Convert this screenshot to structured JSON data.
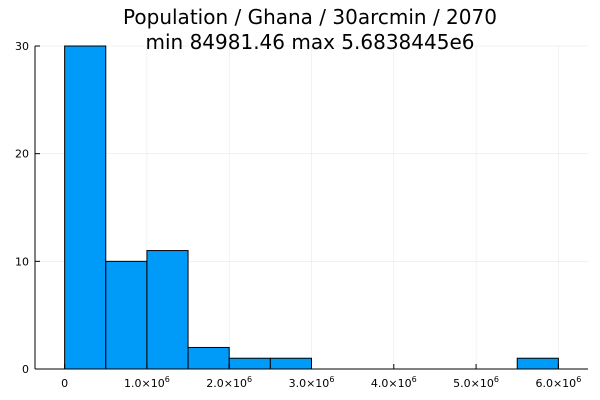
{
  "chart_data": {
    "type": "bar",
    "title": "Population / Ghana / 30arcmin / 2070",
    "subtitle": "min 84981.46  max 5.6838445e6",
    "xlabel": "",
    "ylabel": "",
    "bin_width": 500000,
    "bins": [
      {
        "x0": 0,
        "x1": 500000,
        "count": 30
      },
      {
        "x0": 500000,
        "x1": 1000000,
        "count": 10
      },
      {
        "x0": 1000000,
        "x1": 1500000,
        "count": 11
      },
      {
        "x0": 1500000,
        "x1": 2000000,
        "count": 2
      },
      {
        "x0": 2000000,
        "x1": 2500000,
        "count": 1
      },
      {
        "x0": 2500000,
        "x1": 3000000,
        "count": 1
      },
      {
        "x0": 3000000,
        "x1": 3500000,
        "count": 0
      },
      {
        "x0": 3500000,
        "x1": 4000000,
        "count": 0
      },
      {
        "x0": 4000000,
        "x1": 4500000,
        "count": 0
      },
      {
        "x0": 4500000,
        "x1": 5000000,
        "count": 0
      },
      {
        "x0": 5000000,
        "x1": 5500000,
        "count": 0
      },
      {
        "x0": 5500000,
        "x1": 6000000,
        "count": 1
      }
    ],
    "xlim": [
      -360000,
      6360000
    ],
    "ylim": [
      0,
      30
    ],
    "x_ticks": [
      {
        "value": 0,
        "mantissa": "0",
        "exp": ""
      },
      {
        "value": 1000000,
        "mantissa": "1.0×10",
        "exp": "6"
      },
      {
        "value": 2000000,
        "mantissa": "2.0×10",
        "exp": "6"
      },
      {
        "value": 3000000,
        "mantissa": "3.0×10",
        "exp": "6"
      },
      {
        "value": 4000000,
        "mantissa": "4.0×10",
        "exp": "6"
      },
      {
        "value": 5000000,
        "mantissa": "5.0×10",
        "exp": "6"
      },
      {
        "value": 6000000,
        "mantissa": "6.0×10",
        "exp": "6"
      }
    ],
    "y_ticks": [
      0,
      10,
      20,
      30
    ],
    "grid": true,
    "legend": "none",
    "bar_color": "#009af9",
    "bar_stroke": "#000000"
  }
}
